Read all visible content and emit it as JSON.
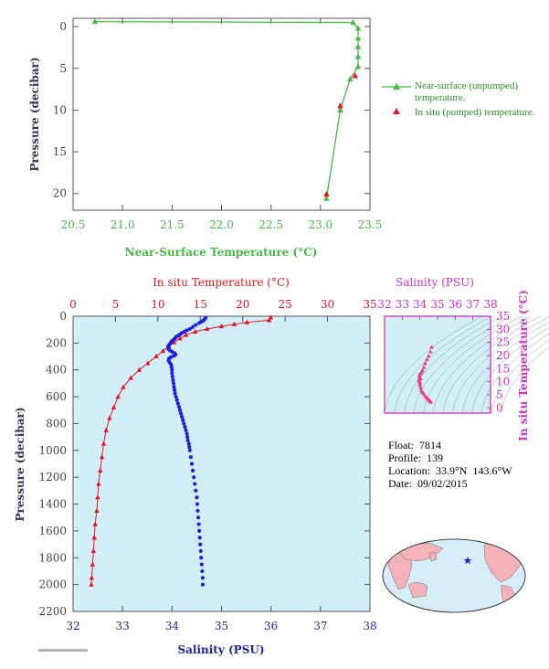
{
  "colors": {
    "green": "#44b844",
    "red": "#e8141e",
    "blue": "#1f1fe0",
    "magenta": "#cc33cc",
    "navy": "#1f1fa0",
    "plot_bg": "#d2eef8",
    "dark_text": "#333355"
  },
  "float_info": {
    "float": "Float:  7814",
    "profile": "Profile:  139",
    "location": "Location:  33.9°N  143.6°W",
    "date": "Date:  09/02/2015"
  },
  "chart_data": [
    {
      "id": "near-surface",
      "type": "line",
      "xlabel": "Near-Surface Temperature (°C)",
      "ylabel": "Pressure (decibar)",
      "xlim": [
        20.5,
        23.5
      ],
      "ylim": [
        22,
        -1
      ],
      "xticks": [
        "20.5",
        "21.0",
        "21.5",
        "22.0",
        "22.5",
        "23.0",
        "23.5"
      ],
      "yticks": [
        "0",
        "5",
        "10",
        "15",
        "20"
      ],
      "legend_position": "right",
      "series": [
        {
          "name": "Near-surface (unpumped) temperature.",
          "marker": "triangle",
          "points": [
            [
              20.72,
              -0.6
            ],
            [
              23.33,
              -0.5
            ],
            [
              23.38,
              0.2
            ],
            [
              23.38,
              1.4
            ],
            [
              23.38,
              2.4
            ],
            [
              23.38,
              3.6
            ],
            [
              23.38,
              4.8
            ],
            [
              23.3,
              6.3
            ],
            [
              23.2,
              10.0
            ],
            [
              23.06,
              20.6
            ]
          ]
        },
        {
          "name": "In situ (pumped) temperature.",
          "marker": "triangle",
          "points": [
            [
              23.35,
              5.9
            ],
            [
              23.2,
              9.5
            ],
            [
              23.06,
              20.1
            ]
          ]
        }
      ]
    },
    {
      "id": "profile",
      "type": "scatter",
      "title_top": "In situ Temperature (°C)",
      "xlabel": "Salinity (PSU)",
      "ylabel": "Pressure (decibar)",
      "temp_lim": [
        0,
        35
      ],
      "sal_lim": [
        32,
        38
      ],
      "ylim": [
        2200,
        0
      ],
      "temp_ticks": [
        "0",
        "5",
        "10",
        "15",
        "20",
        "25",
        "30",
        "35"
      ],
      "sal_ticks": [
        "32",
        "33",
        "34",
        "35",
        "36",
        "37",
        "38"
      ],
      "pressure_ticks": [
        "0",
        "200",
        "400",
        "600",
        "800",
        "1000",
        "1200",
        "1400",
        "1600",
        "1800",
        "2000",
        "2200"
      ],
      "temperature": [
        [
          23.3,
          10
        ],
        [
          23.1,
          30
        ],
        [
          20.5,
          45
        ],
        [
          19.0,
          60
        ],
        [
          17.5,
          75
        ],
        [
          15.8,
          95
        ],
        [
          14.4,
          115
        ],
        [
          13.3,
          140
        ],
        [
          12.6,
          165
        ],
        [
          11.9,
          195
        ],
        [
          11.3,
          225
        ],
        [
          10.6,
          260
        ],
        [
          9.8,
          300
        ],
        [
          8.8,
          350
        ],
        [
          7.8,
          400
        ],
        [
          6.8,
          460
        ],
        [
          5.9,
          530
        ],
        [
          5.3,
          600
        ],
        [
          4.8,
          680
        ],
        [
          4.3,
          760
        ],
        [
          3.9,
          850
        ],
        [
          3.6,
          950
        ],
        [
          3.4,
          1050
        ],
        [
          3.2,
          1150
        ],
        [
          3.0,
          1250
        ],
        [
          2.9,
          1350
        ],
        [
          2.8,
          1450
        ],
        [
          2.6,
          1550
        ],
        [
          2.5,
          1650
        ],
        [
          2.4,
          1750
        ],
        [
          2.3,
          1850
        ],
        [
          2.2,
          1950
        ],
        [
          2.15,
          2000
        ]
      ],
      "salinity": [
        [
          34.68,
          10
        ],
        [
          34.66,
          20
        ],
        [
          34.64,
          30
        ],
        [
          34.6,
          40
        ],
        [
          34.55,
          50
        ],
        [
          34.48,
          65
        ],
        [
          34.42,
          80
        ],
        [
          34.36,
          95
        ],
        [
          34.3,
          105
        ],
        [
          34.25,
          115
        ],
        [
          34.2,
          125
        ],
        [
          34.16,
          135
        ],
        [
          34.12,
          145
        ],
        [
          34.08,
          155
        ],
        [
          34.06,
          165
        ],
        [
          34.03,
          175
        ],
        [
          34.0,
          185
        ],
        [
          33.98,
          195
        ],
        [
          33.96,
          205
        ],
        [
          33.94,
          215
        ],
        [
          33.92,
          225
        ],
        [
          33.92,
          235
        ],
        [
          33.93,
          245
        ],
        [
          33.96,
          255
        ],
        [
          34.0,
          265
        ],
        [
          34.05,
          275
        ],
        [
          34.07,
          285
        ],
        [
          34.04,
          295
        ],
        [
          33.98,
          305
        ],
        [
          33.94,
          315
        ],
        [
          33.93,
          330
        ],
        [
          33.95,
          345
        ],
        [
          33.98,
          360
        ],
        [
          33.99,
          380
        ],
        [
          34.0,
          400
        ],
        [
          34.0,
          425
        ],
        [
          34.01,
          450
        ],
        [
          34.02,
          475
        ],
        [
          34.03,
          500
        ],
        [
          34.04,
          525
        ],
        [
          34.05,
          550
        ],
        [
          34.06,
          575
        ],
        [
          34.08,
          600
        ],
        [
          34.1,
          625
        ],
        [
          34.12,
          650
        ],
        [
          34.14,
          675
        ],
        [
          34.16,
          700
        ],
        [
          34.18,
          725
        ],
        [
          34.2,
          750
        ],
        [
          34.22,
          775
        ],
        [
          34.24,
          800
        ],
        [
          34.26,
          825
        ],
        [
          34.28,
          850
        ],
        [
          34.3,
          875
        ],
        [
          34.31,
          900
        ],
        [
          34.32,
          925
        ],
        [
          34.34,
          950
        ],
        [
          34.35,
          975
        ],
        [
          34.36,
          1000
        ],
        [
          34.38,
          1050
        ],
        [
          34.4,
          1100
        ],
        [
          34.42,
          1150
        ],
        [
          34.44,
          1200
        ],
        [
          34.46,
          1250
        ],
        [
          34.48,
          1300
        ],
        [
          34.5,
          1350
        ],
        [
          34.51,
          1400
        ],
        [
          34.52,
          1450
        ],
        [
          34.53,
          1500
        ],
        [
          34.54,
          1550
        ],
        [
          34.55,
          1600
        ],
        [
          34.56,
          1650
        ],
        [
          34.57,
          1700
        ],
        [
          34.58,
          1750
        ],
        [
          34.59,
          1800
        ],
        [
          34.6,
          1850
        ],
        [
          34.61,
          1900
        ],
        [
          34.62,
          1950
        ],
        [
          34.62,
          2000
        ]
      ]
    },
    {
      "id": "ts-diagram",
      "type": "scatter",
      "title_top": "Salinity (PSU)",
      "ylabel": "In situ Temperature (°C)",
      "sal_lim": [
        32,
        38
      ],
      "temp_lim": [
        -2,
        35
      ],
      "sal_ticks": [
        "32",
        "33",
        "34",
        "35",
        "36",
        "37",
        "38"
      ],
      "temp_ticks": [
        "0",
        "5",
        "10",
        "15",
        "20",
        "25",
        "30",
        "35"
      ],
      "points": [
        [
          34.62,
          2.2
        ],
        [
          34.58,
          2.6
        ],
        [
          34.52,
          3.0
        ],
        [
          34.45,
          3.4
        ],
        [
          34.38,
          3.9
        ],
        [
          34.3,
          4.5
        ],
        [
          34.22,
          5.3
        ],
        [
          34.14,
          6.0
        ],
        [
          34.08,
          6.8
        ],
        [
          34.04,
          7.8
        ],
        [
          34.01,
          8.8
        ],
        [
          34.0,
          9.6
        ],
        [
          33.98,
          10.2
        ],
        [
          33.94,
          10.7
        ],
        [
          34.04,
          11.2
        ],
        [
          34.0,
          11.8
        ],
        [
          33.96,
          12.4
        ],
        [
          34.02,
          13.0
        ],
        [
          34.08,
          13.6
        ],
        [
          34.15,
          14.3
        ],
        [
          34.22,
          15.5
        ],
        [
          34.3,
          17.0
        ],
        [
          34.4,
          18.5
        ],
        [
          34.5,
          19.8
        ],
        [
          34.6,
          21.5
        ],
        [
          34.66,
          23.2
        ]
      ]
    }
  ]
}
